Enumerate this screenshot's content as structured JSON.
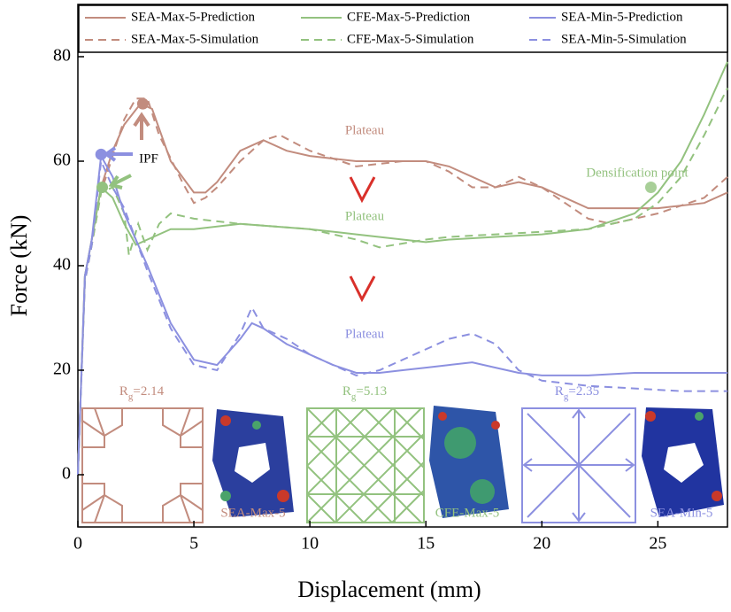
{
  "chart_data": {
    "type": "line",
    "x_label": "Displacement (mm)",
    "y_label": "Force (kN)",
    "xlim": [
      0,
      28
    ],
    "ylim": [
      -10,
      90
    ],
    "xticks": [
      0,
      5,
      10,
      15,
      20,
      25
    ],
    "yticks": [
      0,
      20,
      40,
      60,
      80
    ],
    "legend": "top",
    "series": [
      {
        "name": "SEA-Max-5-Prediction",
        "color": "#c28c7e",
        "dash": false,
        "x": [
          0,
          0.3,
          0.6,
          1,
          1.5,
          2,
          2.7,
          3.2,
          4,
          5,
          5.5,
          6,
          7,
          8,
          9,
          10,
          12,
          14,
          15,
          16,
          17,
          18,
          19,
          20,
          21,
          22,
          23,
          25,
          27,
          28
        ],
        "values": [
          0,
          38,
          45,
          55,
          62,
          67,
          71,
          70,
          60,
          54,
          54,
          56,
          62,
          64,
          62,
          61,
          60,
          60,
          60,
          59,
          57,
          55,
          56,
          55,
          53,
          51,
          51,
          51,
          52,
          54
        ]
      },
      {
        "name": "SEA-Max-5-Simulation",
        "color": "#c28c7e",
        "dash": true,
        "x": [
          0,
          0.3,
          0.6,
          1,
          1.5,
          2,
          2.5,
          3,
          3.5,
          4.5,
          5,
          5.5,
          6,
          7,
          8,
          8.7,
          10,
          12,
          14,
          15,
          16,
          17,
          18,
          19,
          20,
          21,
          22,
          23,
          25,
          27,
          28
        ],
        "values": [
          0,
          37,
          44,
          54,
          61,
          68,
          72,
          72,
          65,
          56,
          52,
          53,
          55,
          60,
          64,
          65,
          62,
          59,
          60,
          60,
          58,
          55,
          55,
          57,
          55,
          52,
          49,
          48,
          50,
          53,
          57
        ]
      },
      {
        "name": "CFE-Max-5-Prediction",
        "color": "#93c27f",
        "dash": false,
        "x": [
          0,
          0.3,
          0.6,
          1,
          1.5,
          2,
          2.5,
          3,
          4,
          5,
          7,
          10,
          12,
          14,
          15,
          16,
          18,
          20,
          22,
          24,
          25,
          26,
          27,
          28
        ],
        "values": [
          0,
          38,
          45,
          55,
          53,
          48,
          44,
          45,
          47,
          47,
          48,
          47,
          46,
          45,
          44.5,
          45,
          45.5,
          46,
          47,
          50,
          54,
          60,
          69,
          79
        ]
      },
      {
        "name": "CFE-Max-5-Simulation",
        "color": "#93c27f",
        "dash": true,
        "x": [
          0,
          0.3,
          0.6,
          1,
          1.5,
          2,
          2.2,
          2.6,
          3,
          3.5,
          4,
          5,
          7,
          10,
          12,
          13,
          15,
          16,
          18,
          20,
          22,
          24,
          25,
          26,
          27,
          28
        ],
        "values": [
          0,
          37,
          44,
          54,
          55,
          50,
          42,
          48,
          43,
          48,
          50,
          49,
          48,
          47,
          45,
          43.5,
          45,
          45.5,
          46,
          46.5,
          47,
          49,
          52,
          57,
          65,
          74
        ]
      },
      {
        "name": "SEA-Min-5-Prediction",
        "color": "#8c90e0",
        "dash": false,
        "x": [
          0,
          0.3,
          0.6,
          1,
          1.5,
          2,
          3,
          4,
          5,
          6,
          7,
          7.5,
          8,
          9,
          10,
          11,
          12,
          13,
          14,
          15,
          16,
          17,
          18,
          19,
          20,
          22,
          24,
          26,
          28
        ],
        "values": [
          0,
          38,
          45,
          61,
          57,
          50,
          40,
          29,
          22,
          21,
          26,
          29,
          28,
          25,
          23,
          21,
          19.5,
          19.5,
          20,
          20.5,
          21,
          21.5,
          20.5,
          19.5,
          19,
          19,
          19.5,
          19.5,
          19.5
        ]
      },
      {
        "name": "SEA-Min-5-Simulation",
        "color": "#8c90e0",
        "dash": true,
        "x": [
          0,
          0.3,
          0.6,
          1,
          1.5,
          2,
          3,
          4,
          5,
          6,
          7,
          7.5,
          8,
          9,
          10,
          11,
          12,
          13,
          14,
          15,
          16,
          17,
          18,
          19,
          20,
          22,
          24,
          26,
          28
        ],
        "values": [
          0,
          37,
          44,
          60,
          55,
          51,
          39,
          28,
          21,
          20,
          27,
          32,
          28,
          26,
          23,
          21,
          19,
          20,
          22,
          24,
          26,
          27,
          25,
          20,
          18,
          17,
          16.5,
          16,
          16
        ]
      }
    ],
    "points": [
      {
        "x": 2.8,
        "y": 71,
        "color": "#c28c7e"
      },
      {
        "x": 1.05,
        "y": 55,
        "color": "#93c27f"
      },
      {
        "x": 1,
        "y": 61.3,
        "color": "#8c90e0"
      },
      {
        "x": 24.7,
        "y": 55,
        "color": "#a8cf98"
      }
    ],
    "annotations": [
      {
        "text": "Plateau",
        "color": "#c28c7e"
      },
      {
        "text": "Plateau",
        "color": "#93c27f"
      },
      {
        "text": "Plateau",
        "color": "#8c90e0"
      },
      {
        "text": "IPF",
        "color": "#000000"
      },
      {
        "text": "Densification point",
        "color": "#93c27f"
      }
    ],
    "insets": [
      {
        "main": "R",
        "sub": "g",
        "rest": "=2.14",
        "name": "SEA-Max-5",
        "color": "#c28c7e"
      },
      {
        "main": "R",
        "sub": "g",
        "rest": "=5.13",
        "name": "CFE-Max-5",
        "color": "#93c27f"
      },
      {
        "main": "R",
        "sub": "g",
        "rest": "=2.35",
        "name": "SEA-Min-5",
        "color": "#8c90e0"
      }
    ]
  }
}
